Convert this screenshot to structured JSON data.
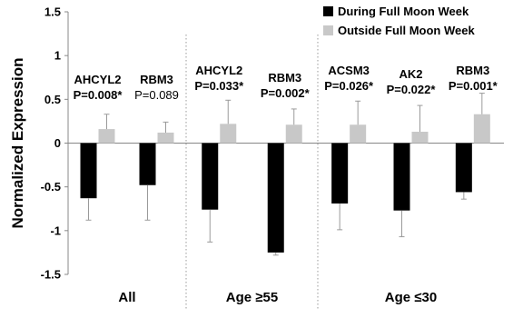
{
  "chart_data": {
    "type": "bar",
    "ylabel": "Normalized Expression",
    "ylim": [
      -1.5,
      1.5
    ],
    "yticks": [
      1.5,
      1,
      0.5,
      0,
      -0.5,
      -1,
      -1.5
    ],
    "ytick_labels": [
      "1.5",
      "1",
      "0.5",
      "0",
      "-0.5",
      "-1",
      "-1.5"
    ],
    "grid": false,
    "legend_position": "top-right",
    "series": [
      {
        "name": "During Full Moon Week",
        "color": "#000000"
      },
      {
        "name": "Outside Full Moon Week",
        "color": "#c8c8c8"
      }
    ],
    "groups": [
      {
        "label": "All",
        "genes": [
          {
            "name": "AHCYL2",
            "pvalue": "P=0.008*",
            "significant": true,
            "during": -0.63,
            "during_err": 0.25,
            "outside": 0.16,
            "outside_err": 0.17
          },
          {
            "name": "RBM3",
            "pvalue": "P=0.089",
            "significant": false,
            "during": -0.48,
            "during_err": 0.4,
            "outside": 0.12,
            "outside_err": 0.12
          }
        ]
      },
      {
        "label": "Age ≥55",
        "genes": [
          {
            "name": "AHCYL2",
            "pvalue": "P=0.033*",
            "significant": true,
            "during": -0.76,
            "during_err": 0.37,
            "outside": 0.22,
            "outside_err": 0.27
          },
          {
            "name": "RBM3",
            "pvalue": "P=0.002*",
            "significant": true,
            "during": -1.25,
            "during_err": 0.03,
            "outside": 0.21,
            "outside_err": 0.18
          }
        ]
      },
      {
        "label": "Age ≤30",
        "genes": [
          {
            "name": "ACSM3",
            "pvalue": "P=0.026*",
            "significant": true,
            "during": -0.69,
            "during_err": 0.3,
            "outside": 0.21,
            "outside_err": 0.27
          },
          {
            "name": "AK2",
            "pvalue": "P=0.022*",
            "significant": true,
            "during": -0.77,
            "during_err": 0.3,
            "outside": 0.13,
            "outside_err": 0.3
          },
          {
            "name": "RBM3",
            "pvalue": "P=0.001*",
            "significant": true,
            "during": -0.56,
            "during_err": 0.08,
            "outside": 0.33,
            "outside_err": 0.24
          }
        ]
      }
    ]
  }
}
